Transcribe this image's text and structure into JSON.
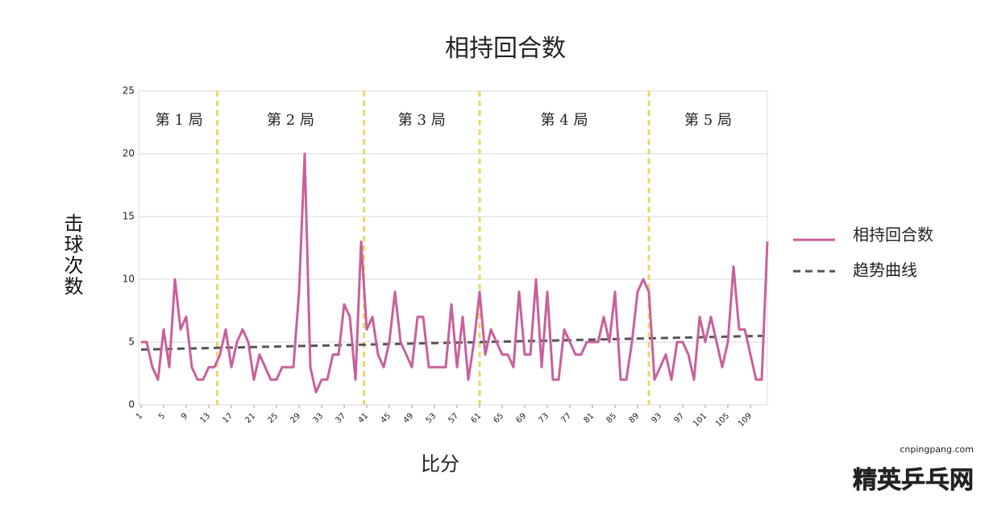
{
  "chart_data": {
    "type": "line",
    "title": "相持回合数",
    "x_label": "比分",
    "y_label": "击球次数",
    "x": [
      1,
      2,
      3,
      4,
      5,
      6,
      7,
      8,
      9,
      10,
      11,
      12,
      13,
      14,
      15,
      16,
      17,
      18,
      19,
      20,
      21,
      22,
      23,
      24,
      25,
      26,
      27,
      28,
      29,
      30,
      31,
      32,
      33,
      34,
      35,
      36,
      37,
      38,
      39,
      40,
      41,
      42,
      43,
      44,
      45,
      46,
      47,
      48,
      49,
      50,
      51,
      52,
      53,
      54,
      55,
      56,
      57,
      58,
      59,
      60,
      61,
      62,
      63,
      64,
      65,
      66,
      67,
      68,
      69,
      70,
      71,
      72,
      73,
      74,
      75,
      76,
      77,
      78,
      79,
      80,
      81,
      82,
      83,
      84,
      85,
      86,
      87,
      88,
      89,
      90,
      91,
      92,
      93,
      94,
      95,
      96,
      97,
      98,
      99,
      100,
      101,
      102,
      103,
      104,
      105,
      106,
      107,
      108,
      109,
      110,
      111,
      112
    ],
    "series": [
      {
        "name": "相持回合数",
        "color": "#c9609b",
        "values": [
          5,
          5,
          3,
          2,
          6,
          3,
          10,
          6,
          7,
          3,
          2,
          2,
          3,
          3,
          4,
          6,
          3,
          5,
          6,
          5,
          2,
          4,
          3,
          2,
          2,
          3,
          3,
          3,
          9,
          20,
          3,
          1,
          2,
          2,
          4,
          4,
          8,
          7,
          2,
          13,
          6,
          7,
          4,
          3,
          5,
          9,
          5,
          4,
          3,
          7,
          7,
          3,
          3,
          3,
          3,
          8,
          3,
          7,
          2,
          5,
          9,
          4,
          6,
          5,
          4,
          4,
          3,
          9,
          4,
          4,
          10,
          3,
          9,
          2,
          2,
          6,
          5,
          4,
          4,
          5,
          5,
          5,
          7,
          5,
          9,
          2,
          2,
          5,
          9,
          10,
          9,
          2,
          3,
          4,
          2,
          5,
          5,
          4,
          2,
          7,
          5,
          7,
          5,
          3,
          5,
          11,
          6,
          6,
          4,
          2,
          2,
          13
        ]
      }
    ],
    "trend_line": {
      "name": "趋势曲线",
      "color": "#555555",
      "x": [
        1,
        112
      ],
      "values": [
        4.4,
        5.5
      ]
    },
    "xlim": [
      1,
      112
    ],
    "xticks": [
      1,
      5,
      9,
      13,
      17,
      21,
      25,
      29,
      33,
      37,
      41,
      45,
      49,
      53,
      57,
      61,
      65,
      69,
      73,
      77,
      81,
      85,
      89,
      93,
      97,
      101,
      105,
      109
    ],
    "ylim": [
      0,
      25
    ],
    "yticks": [
      0,
      5,
      10,
      15,
      20,
      25
    ],
    "grid": true,
    "games": [
      {
        "label": "第 1 局",
        "start": 1,
        "end": 14.5
      },
      {
        "label": "第 2 局",
        "start": 14.5,
        "end": 40.5
      },
      {
        "label": "第 3 局",
        "start": 40.5,
        "end": 61
      },
      {
        "label": "第 4 局",
        "start": 61,
        "end": 91
      },
      {
        "label": "第 5 局",
        "start": 91,
        "end": 112
      }
    ],
    "divider_color": "#e8d86a",
    "watermark": [
      "cnpingpang.com",
      "精英乒乓网"
    ]
  }
}
